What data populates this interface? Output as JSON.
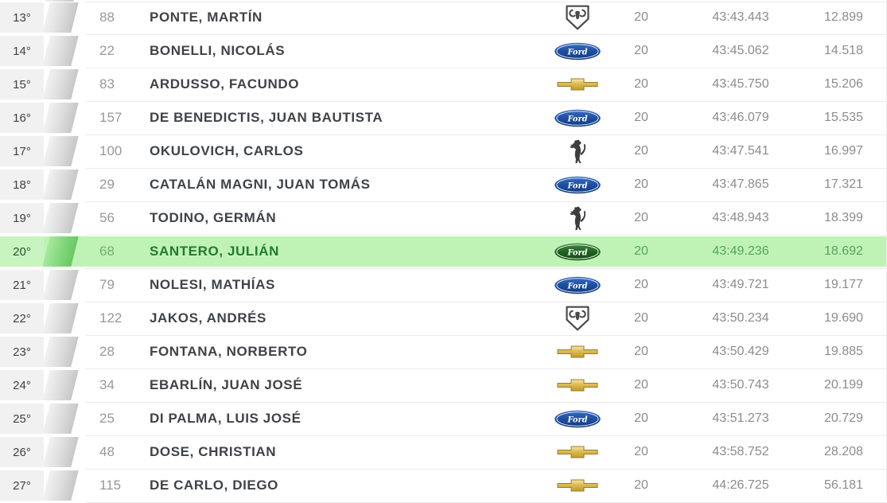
{
  "table": {
    "columns": [
      "position",
      "car_number",
      "driver",
      "brand",
      "laps",
      "time",
      "gap"
    ],
    "rows": [
      {
        "position": "13°",
        "number": "88",
        "driver": "PONTE, MARTÍN",
        "brand": "dodge",
        "brand_icon": "dodge-logo",
        "laps": "20",
        "time": "43:43.443",
        "gap": "12.899",
        "highlighted": false
      },
      {
        "position": "14°",
        "number": "22",
        "driver": "BONELLI, NICOLÁS",
        "brand": "ford",
        "brand_icon": "ford-logo",
        "laps": "20",
        "time": "43:45.062",
        "gap": "14.518",
        "highlighted": false
      },
      {
        "position": "15°",
        "number": "83",
        "driver": "ARDUSSO, FACUNDO",
        "brand": "chevrolet",
        "brand_icon": "chevrolet-logo",
        "laps": "20",
        "time": "43:45.750",
        "gap": "15.206",
        "highlighted": false
      },
      {
        "position": "16°",
        "number": "157",
        "driver": "DE BENEDICTIS, JUAN BAUTISTA",
        "brand": "ford",
        "brand_icon": "ford-logo",
        "laps": "20",
        "time": "43:46.079",
        "gap": "15.535",
        "highlighted": false
      },
      {
        "position": "17°",
        "number": "100",
        "driver": "OKULOVICH, CARLOS",
        "brand": "torino",
        "brand_icon": "torino-logo",
        "laps": "20",
        "time": "43:47.541",
        "gap": "16.997",
        "highlighted": false
      },
      {
        "position": "18°",
        "number": "29",
        "driver": "CATALÁN MAGNI, JUAN TOMÁS",
        "brand": "ford",
        "brand_icon": "ford-logo",
        "laps": "20",
        "time": "43:47.865",
        "gap": "17.321",
        "highlighted": false
      },
      {
        "position": "19°",
        "number": "56",
        "driver": "TODINO, GERMÁN",
        "brand": "torino",
        "brand_icon": "torino-logo",
        "laps": "20",
        "time": "43:48.943",
        "gap": "18.399",
        "highlighted": false
      },
      {
        "position": "20°",
        "number": "68",
        "driver": "SANTERO, JULIÁN",
        "brand": "ford",
        "brand_icon": "ford-logo",
        "laps": "20",
        "time": "43:49.236",
        "gap": "18.692",
        "highlighted": true
      },
      {
        "position": "21°",
        "number": "79",
        "driver": "NOLESI, MATHÍAS",
        "brand": "ford",
        "brand_icon": "ford-logo",
        "laps": "20",
        "time": "43:49.721",
        "gap": "19.177",
        "highlighted": false
      },
      {
        "position": "22°",
        "number": "122",
        "driver": "JAKOS, ANDRÉS",
        "brand": "dodge",
        "brand_icon": "dodge-logo",
        "laps": "20",
        "time": "43:50.234",
        "gap": "19.690",
        "highlighted": false
      },
      {
        "position": "23°",
        "number": "28",
        "driver": "FONTANA, NORBERTO",
        "brand": "chevrolet",
        "brand_icon": "chevrolet-logo",
        "laps": "20",
        "time": "43:50.429",
        "gap": "19.885",
        "highlighted": false
      },
      {
        "position": "24°",
        "number": "34",
        "driver": "EBARLÍN, JUAN JOSÉ",
        "brand": "chevrolet",
        "brand_icon": "chevrolet-logo",
        "laps": "20",
        "time": "43:50.743",
        "gap": "20.199",
        "highlighted": false
      },
      {
        "position": "25°",
        "number": "25",
        "driver": "DI PALMA, LUIS JOSÉ",
        "brand": "ford",
        "brand_icon": "ford-logo",
        "laps": "20",
        "time": "43:51.273",
        "gap": "20.729",
        "highlighted": false
      },
      {
        "position": "26°",
        "number": "48",
        "driver": "DOSE, CHRISTIAN",
        "brand": "chevrolet",
        "brand_icon": "chevrolet-logo",
        "laps": "20",
        "time": "43:58.752",
        "gap": "28.208",
        "highlighted": false
      },
      {
        "position": "27°",
        "number": "115",
        "driver": "DE CARLO, DIEGO",
        "brand": "chevrolet",
        "brand_icon": "chevrolet-logo",
        "laps": "20",
        "time": "44:26.725",
        "gap": "56.181",
        "highlighted": false
      }
    ]
  },
  "colors": {
    "highlight_row": "#bff3b6",
    "highlight_text": "#217b2f",
    "position_column_bg": "#f1f1f2",
    "driver_text": "#3e4348",
    "muted_text": "#8a8c8e",
    "stripe_gray": "#c7c7c7",
    "ford_blue": "#1d4fa1",
    "chevrolet_gold": "#ddbb52",
    "logo_dark": "#4a4a4a"
  }
}
